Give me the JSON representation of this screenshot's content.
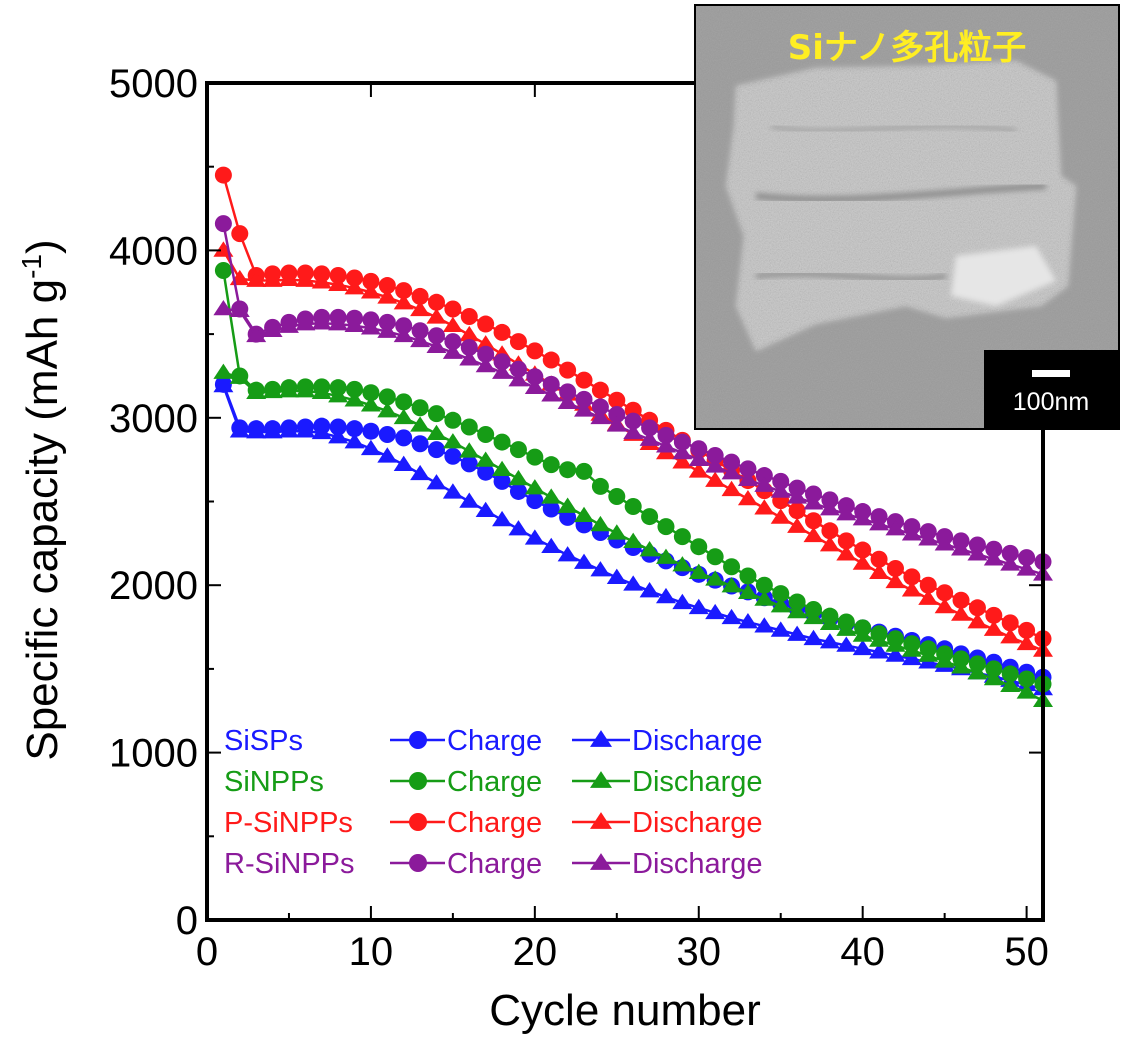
{
  "chart_data": {
    "type": "line",
    "xlabel": "Cycle number",
    "ylabel": "Specific capacity (mAh g",
    "ylabel_sup": "-1",
    "ylabel_close": ")",
    "xlim": [
      0,
      51
    ],
    "ylim": [
      0,
      5000
    ],
    "x_ticks": [
      "0",
      "10",
      "20",
      "30",
      "40",
      "50"
    ],
    "y_ticks": [
      "0",
      "1000",
      "2000",
      "3000",
      "4000",
      "5000"
    ],
    "legend_placement": "bottom-left",
    "grid": false,
    "x": [
      1,
      2,
      3,
      4,
      5,
      6,
      7,
      8,
      9,
      10,
      11,
      12,
      13,
      14,
      15,
      16,
      17,
      18,
      19,
      20,
      21,
      22,
      23,
      24,
      25,
      26,
      27,
      28,
      29,
      30,
      31,
      32,
      33,
      34,
      35,
      36,
      37,
      38,
      39,
      40,
      41,
      42,
      43,
      44,
      45,
      46,
      47,
      48,
      49,
      50,
      51
    ],
    "series": [
      {
        "sample": "SiSPs",
        "name": "Charge",
        "marker": "circle",
        "color": "#1a1aff",
        "values": [
          3200,
          2940,
          2935,
          2935,
          2940,
          2945,
          2950,
          2945,
          2935,
          2920,
          2900,
          2880,
          2845,
          2810,
          2770,
          2725,
          2675,
          2620,
          2560,
          2505,
          2455,
          2405,
          2360,
          2315,
          2270,
          2225,
          2185,
          2145,
          2105,
          2065,
          2030,
          1995,
          1960,
          1925,
          1890,
          1860,
          1830,
          1800,
          1770,
          1745,
          1720,
          1695,
          1670,
          1645,
          1620,
          1590,
          1565,
          1540,
          1510,
          1480,
          1450
        ]
      },
      {
        "sample": "SiSPs",
        "name": "Discharge",
        "marker": "triangle",
        "color": "#1a1aff",
        "values": [
          3190,
          2920,
          2915,
          2915,
          2920,
          2920,
          2910,
          2885,
          2855,
          2815,
          2770,
          2720,
          2665,
          2610,
          2555,
          2500,
          2445,
          2390,
          2335,
          2280,
          2230,
          2180,
          2135,
          2090,
          2045,
          2005,
          1965,
          1930,
          1895,
          1865,
          1835,
          1805,
          1780,
          1755,
          1730,
          1705,
          1680,
          1660,
          1640,
          1620,
          1600,
          1580,
          1560,
          1540,
          1520,
          1500,
          1475,
          1455,
          1430,
          1405,
          1380
        ]
      },
      {
        "sample": "SiNPPs",
        "name": "Charge",
        "marker": "circle",
        "color": "#169c16",
        "values": [
          3880,
          3250,
          3165,
          3170,
          3180,
          3185,
          3185,
          3180,
          3170,
          3150,
          3125,
          3095,
          3060,
          3025,
          2985,
          2945,
          2900,
          2855,
          2810,
          2765,
          2720,
          2690,
          2680,
          2590,
          2530,
          2470,
          2410,
          2350,
          2290,
          2230,
          2170,
          2110,
          2055,
          2000,
          1950,
          1900,
          1855,
          1815,
          1780,
          1745,
          1710,
          1680,
          1650,
          1620,
          1590,
          1560,
          1530,
          1500,
          1470,
          1440,
          1410
        ]
      },
      {
        "sample": "SiNPPs",
        "name": "Discharge",
        "marker": "triangle",
        "color": "#169c16",
        "values": [
          3270,
          3240,
          3150,
          3155,
          3160,
          3160,
          3150,
          3130,
          3105,
          3075,
          3040,
          3000,
          2955,
          2905,
          2855,
          2800,
          2745,
          2690,
          2635,
          2580,
          2525,
          2470,
          2415,
          2360,
          2310,
          2260,
          2210,
          2165,
          2120,
          2075,
          2035,
          1995,
          1955,
          1915,
          1875,
          1840,
          1805,
          1770,
          1735,
          1700,
          1670,
          1640,
          1610,
          1580,
          1545,
          1510,
          1475,
          1440,
          1400,
          1360,
          1310
        ]
      },
      {
        "sample": "P-SiNPPs",
        "name": "Charge",
        "marker": "circle",
        "color": "#ff1a1a",
        "values": [
          4450,
          4100,
          3850,
          3860,
          3865,
          3865,
          3860,
          3850,
          3835,
          3815,
          3790,
          3760,
          3725,
          3690,
          3650,
          3605,
          3560,
          3510,
          3455,
          3400,
          3345,
          3285,
          3225,
          3165,
          3105,
          3045,
          2985,
          2925,
          2865,
          2805,
          2745,
          2685,
          2625,
          2565,
          2505,
          2445,
          2385,
          2325,
          2265,
          2210,
          2155,
          2100,
          2050,
          2000,
          1955,
          1910,
          1865,
          1820,
          1775,
          1730,
          1680
        ]
      },
      {
        "sample": "P-SiNPPs",
        "name": "Discharge",
        "marker": "triangle",
        "color": "#ff1a1a",
        "values": [
          4000,
          3830,
          3820,
          3820,
          3825,
          3820,
          3810,
          3795,
          3775,
          3750,
          3720,
          3685,
          3645,
          3600,
          3550,
          3495,
          3440,
          3380,
          3320,
          3260,
          3200,
          3140,
          3080,
          3020,
          2960,
          2900,
          2845,
          2790,
          2735,
          2680,
          2625,
          2570,
          2515,
          2460,
          2405,
          2350,
          2295,
          2240,
          2185,
          2130,
          2075,
          2020,
          1970,
          1920,
          1870,
          1825,
          1780,
          1735,
          1690,
          1650,
          1610
        ]
      },
      {
        "sample": "R-SiNPPs",
        "name": "Charge",
        "marker": "circle",
        "color": "#8b1a9b",
        "values": [
          4160,
          3650,
          3500,
          3540,
          3570,
          3590,
          3600,
          3600,
          3595,
          3585,
          3570,
          3550,
          3520,
          3490,
          3455,
          3420,
          3380,
          3335,
          3290,
          3245,
          3200,
          3155,
          3110,
          3065,
          3020,
          2980,
          2940,
          2895,
          2855,
          2815,
          2775,
          2735,
          2695,
          2655,
          2620,
          2580,
          2545,
          2510,
          2475,
          2440,
          2410,
          2380,
          2350,
          2320,
          2290,
          2265,
          2240,
          2215,
          2190,
          2165,
          2140
        ]
      },
      {
        "sample": "R-SiNPPs",
        "name": "Discharge",
        "marker": "triangle",
        "color": "#8b1a9b",
        "values": [
          3650,
          3640,
          3490,
          3520,
          3545,
          3560,
          3565,
          3560,
          3550,
          3535,
          3515,
          3490,
          3460,
          3425,
          3390,
          3350,
          3310,
          3270,
          3225,
          3180,
          3135,
          3090,
          3045,
          3000,
          2955,
          2910,
          2870,
          2830,
          2790,
          2750,
          2710,
          2670,
          2630,
          2595,
          2560,
          2525,
          2490,
          2455,
          2425,
          2395,
          2365,
          2335,
          2305,
          2275,
          2245,
          2215,
          2185,
          2155,
          2125,
          2095,
          2065
        ]
      }
    ],
    "legend": [
      {
        "sample": "SiSPs",
        "charge": "Charge",
        "discharge": "Discharge",
        "color": "#1a1aff"
      },
      {
        "sample": "SiNPPs",
        "charge": "Charge",
        "discharge": "Discharge",
        "color": "#169c16"
      },
      {
        "sample": "P-SiNPPs",
        "charge": "Charge",
        "discharge": "Discharge",
        "color": "#ff1a1a"
      },
      {
        "sample": "R-SiNPPs",
        "charge": "Charge",
        "discharge": "Discharge",
        "color": "#8b1a9b"
      }
    ]
  },
  "inset": {
    "title": "Siナノ多孔粒子",
    "scale_label": "100nm",
    "title_color": "#ffee22"
  }
}
